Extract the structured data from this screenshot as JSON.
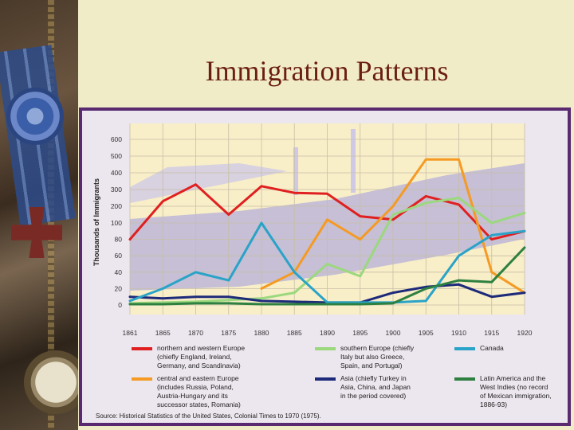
{
  "slide": {
    "title": "Immigration Patterns"
  },
  "source": "Source: Historical Statistics of the United States, Colonial Times to 1970 (1975).",
  "chart_data": {
    "type": "line",
    "ylabel": "Thousands of Immigrants",
    "y_tick_labels": [
      "0",
      "20",
      "40",
      "60",
      "80",
      "100",
      "200",
      "300",
      "400",
      "500",
      "600"
    ],
    "x": [
      "1861",
      "1865",
      "1870",
      "1875",
      "1880",
      "1885",
      "1890",
      "1895",
      "1900",
      "1905",
      "1910",
      "1915",
      "1920"
    ],
    "series": [
      {
        "name": "northern and western Europe (chiefly England, Ireland, Germany, and Scandinavia)",
        "color": "#e02020",
        "values": [
          80,
          230,
          330,
          150,
          320,
          280,
          275,
          140,
          120,
          260,
          210,
          80,
          90
        ]
      },
      {
        "name": "central and eastern Europe (includes Russia, Poland, Austria-Hungary and its successor states, Romania)",
        "color": "#f59a23",
        "values": [
          null,
          null,
          null,
          null,
          20,
          40,
          120,
          80,
          200,
          480,
          480,
          40,
          15
        ]
      },
      {
        "name": "southern Europe (chiefly Italy but also Greece, Spain, and Portugal)",
        "color": "#9bd87e",
        "values": [
          2,
          3,
          4,
          6,
          8,
          15,
          50,
          35,
          150,
          220,
          250,
          100,
          160
        ]
      },
      {
        "name": "Asia (chiefly Turkey in Asia, China, and Japan in the period covered)",
        "color": "#1d2a7a",
        "values": [
          10,
          8,
          10,
          10,
          5,
          4,
          3,
          3,
          15,
          22,
          25,
          10,
          15
        ]
      },
      {
        "name": "Canada",
        "color": "#2aa3c8",
        "values": [
          5,
          20,
          40,
          30,
          100,
          40,
          3,
          3,
          3,
          5,
          60,
          85,
          90
        ]
      },
      {
        "name": "Latin America and the West Indies (no record of Mexican immigration, 1886-93)",
        "color": "#2e8040",
        "values": [
          1,
          1,
          2,
          2,
          1,
          1,
          1,
          1,
          2,
          20,
          30,
          28,
          70
        ]
      }
    ]
  },
  "legend_labels": [
    [
      "northern and western Europe",
      "(chiefly England, Ireland,",
      "Germany, and Scandinavia)"
    ],
    [
      "southern Europe (chiefly",
      "Italy but also Greece,",
      "Spain, and Portugal)"
    ],
    [
      "Canada"
    ],
    [
      "central and eastern Europe",
      "(includes Russia, Poland,",
      "Austria-Hungary and its",
      "successor states, Romania)"
    ],
    [
      "Asia (chiefly Turkey in",
      "Asia, China, and Japan",
      "in the period covered)"
    ],
    [
      "Latin America and the",
      "West Indies (no record",
      "of Mexican immigration,",
      "1886-93)"
    ]
  ]
}
